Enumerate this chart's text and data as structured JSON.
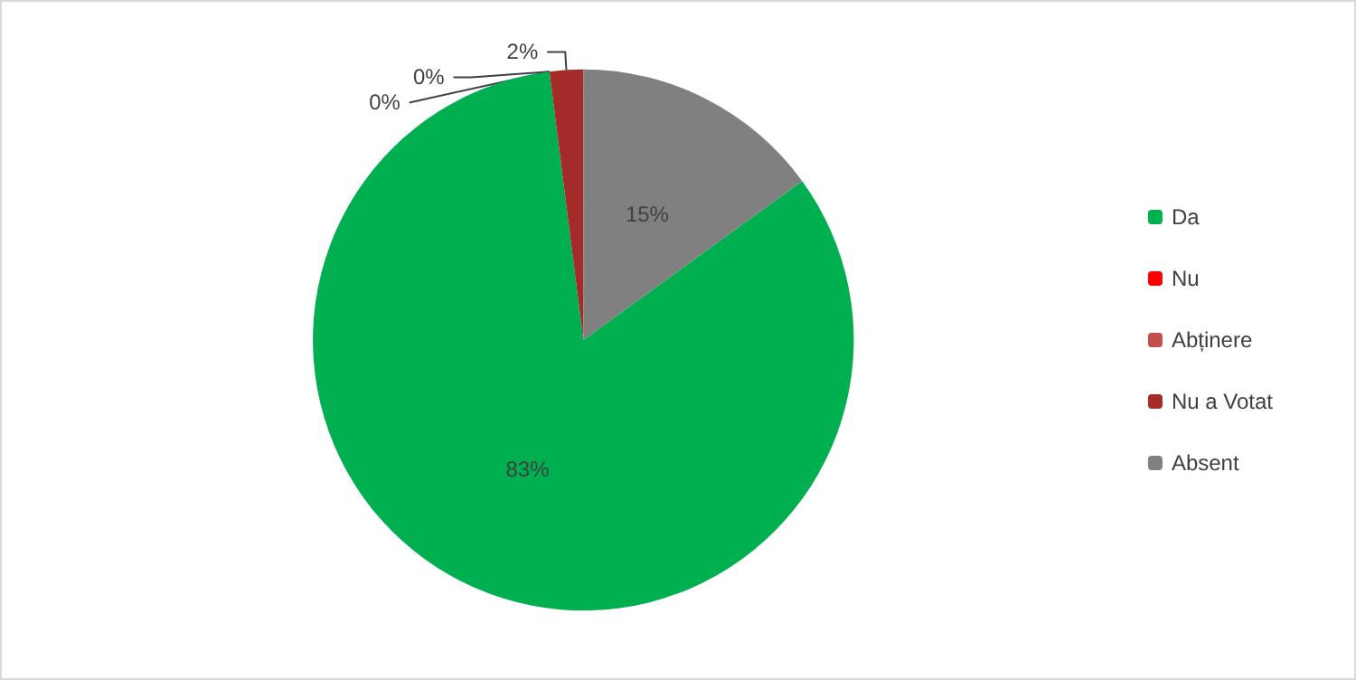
{
  "chart_data": {
    "type": "pie",
    "categories": [
      "Da",
      "Nu",
      "Abținere",
      "Nu a Votat",
      "Absent"
    ],
    "values": [
      83,
      0,
      0,
      2,
      15
    ],
    "colors": [
      "#00b050",
      "#ff0000",
      "#c0504d",
      "#a52a2a",
      "#808080"
    ],
    "value_labels": [
      "83%",
      "0%",
      "0%",
      "2%",
      "15%"
    ],
    "legend": "right"
  }
}
